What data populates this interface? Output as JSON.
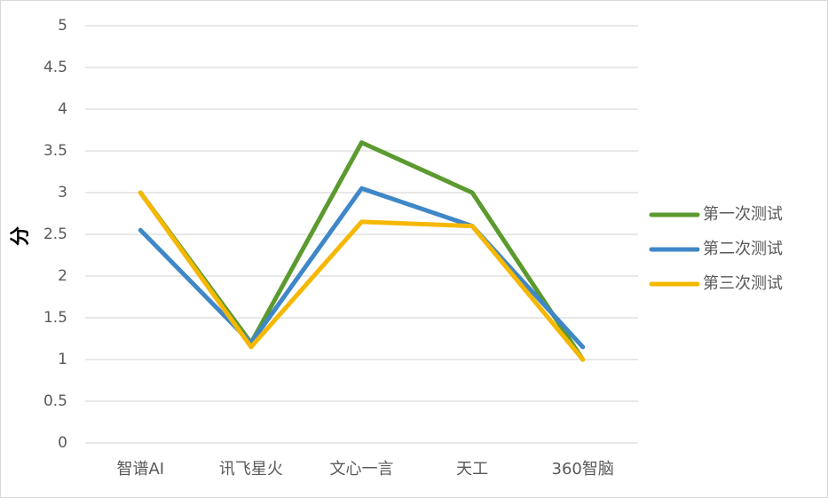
{
  "chart_data": {
    "type": "line",
    "title": "",
    "xlabel": "",
    "ylabel": "分",
    "ylim": [
      0,
      5
    ],
    "yticks": [
      0,
      0.5,
      1,
      1.5,
      2,
      2.5,
      3,
      3.5,
      4,
      4.5,
      5
    ],
    "ytick_labels": [
      "0",
      "0.5",
      "1",
      "1.5",
      "2",
      "2.5",
      "3",
      "3.5",
      "4",
      "4.5",
      "5"
    ],
    "grid": true,
    "legend_position": "right",
    "categories": [
      "智谱AI",
      "讯飞星火",
      "文心一言",
      "天工",
      "360智脑"
    ],
    "series": [
      {
        "name": "第一次测试",
        "color": "#5b9a2f",
        "values": [
          3.0,
          1.2,
          3.6,
          3.0,
          1.0
        ]
      },
      {
        "name": "第二次测试",
        "color": "#3f87c7",
        "values": [
          2.55,
          1.2,
          3.05,
          2.6,
          1.15
        ]
      },
      {
        "name": "第三次测试",
        "color": "#f5b800",
        "values": [
          3.0,
          1.15,
          2.65,
          2.6,
          1.0
        ]
      }
    ]
  }
}
